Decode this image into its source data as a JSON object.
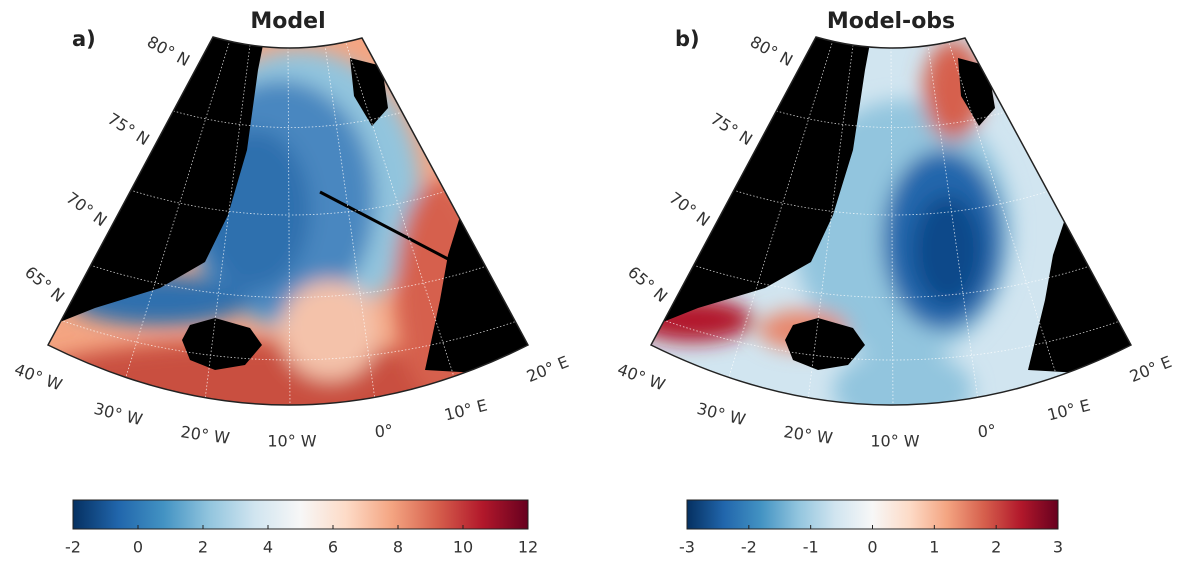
{
  "panels": [
    {
      "label": "a)",
      "title": "Model",
      "lat_labels": [
        "80° N",
        "75° N",
        "70° N",
        "65° N"
      ],
      "lon_labels": [
        "40° W",
        "30° W",
        "20° W",
        "10° W",
        "0°",
        "10° E",
        "20° E"
      ],
      "colorbar": {
        "lim": [
          -2,
          12
        ],
        "ticks": [
          -2,
          0,
          2,
          4,
          6,
          8,
          10,
          12
        ]
      }
    },
    {
      "label": "b)",
      "title": "Model-obs",
      "lat_labels": [
        "80° N",
        "75° N",
        "70° N",
        "65° N"
      ],
      "lon_labels": [
        "40° W",
        "30° W",
        "20° W",
        "10° W",
        "0°",
        "10° E",
        "20° E"
      ],
      "colorbar": {
        "lim": [
          -3,
          3
        ],
        "ticks": [
          -3,
          -2,
          -1,
          0,
          1,
          2,
          3
        ]
      }
    }
  ],
  "colormap": [
    "#053061",
    "#2166ac",
    "#4393c3",
    "#92c5de",
    "#d1e5f0",
    "#f7f7f7",
    "#fddbc7",
    "#f4a582",
    "#d6604d",
    "#b2182b",
    "#67001f"
  ]
}
